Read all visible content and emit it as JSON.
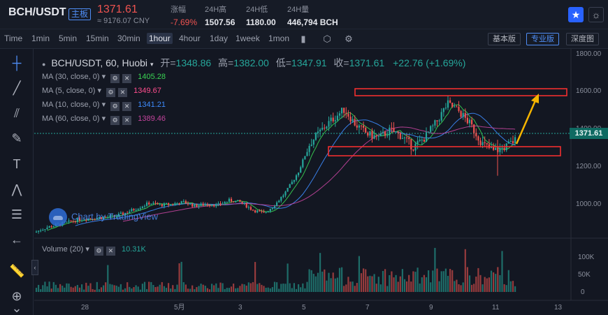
{
  "ticker": {
    "pair": "BCH/USDT",
    "main_badge": "主板",
    "price": "1371.61",
    "cny": "≈ 9176.07 CNY",
    "change_label": "涨幅",
    "change_value": "-7.69%",
    "high_label": "24H高",
    "high_value": "1507.56",
    "low_label": "24H低",
    "low_value": "1180.00",
    "volume_label": "24H量",
    "volume_value": "446,794 BCH"
  },
  "toolbar": {
    "timeframes": [
      "Time",
      "1min",
      "5min",
      "15min",
      "30min",
      "1hour",
      "4hour",
      "1day",
      "1week",
      "1mon"
    ],
    "active_timeframe": "1hour",
    "modes": [
      "基本版",
      "专业版",
      "深度图"
    ],
    "active_mode": "专业版"
  },
  "legend": {
    "symbol": "BCH/USDT, 60, Huobi",
    "open_label": "开=",
    "open": "1348.86",
    "high_label": "高=",
    "high": "1382.00",
    "low_label": "低=",
    "low": "1347.91",
    "close_label": "收=",
    "close": "1371.61",
    "change": "+22.76 (+1.69%)",
    "ma": [
      {
        "label": "MA (30, close, 0)",
        "value": "1405.28",
        "color": "#39d353"
      },
      {
        "label": "MA (5, close, 0)",
        "value": "1349.67",
        "color": "#ff4d8d"
      },
      {
        "label": "MA (10, close, 0)",
        "value": "1341.21",
        "color": "#3d8bfd"
      },
      {
        "label": "MA (60, close, 0)",
        "value": "1389.46",
        "color": "#c2449c"
      }
    ],
    "volume_label": "Volume (20)",
    "volume_value": "10.31K",
    "watermark": "Chart by TradingView"
  },
  "colors": {
    "up": "#26a69a",
    "down": "#ef5350",
    "ma30": "#39d353",
    "ma60": "#c2449c",
    "annotation": "#ff3030",
    "arrow": "#f5b400"
  },
  "chart_data": {
    "type": "candlestick",
    "price_axis": [
      "1800.00",
      "1600.00",
      "1400.00",
      "1200.00",
      "1000.00"
    ],
    "price_range": [
      850,
      1850
    ],
    "last_price_label": "1371.61",
    "volume_axis": [
      "100K",
      "50K",
      "0"
    ],
    "x_ticks": [
      "28",
      "5月",
      "3",
      "5",
      "7",
      "9",
      "11",
      "13"
    ],
    "annotations": {
      "resistance_zone": [
        1585,
        1620
      ],
      "support_zone": [
        1250,
        1300
      ]
    },
    "price_path": [
      [
        0,
        880
      ],
      [
        20,
        905
      ],
      [
        40,
        920
      ],
      [
        60,
        935
      ],
      [
        80,
        950
      ],
      [
        100,
        955
      ],
      [
        120,
        960
      ],
      [
        140,
        965
      ],
      [
        160,
        985
      ],
      [
        180,
        1010
      ],
      [
        200,
        1035
      ],
      [
        220,
        1025
      ],
      [
        240,
        1030
      ],
      [
        260,
        1040
      ],
      [
        280,
        1020
      ],
      [
        300,
        1030
      ],
      [
        320,
        1025
      ],
      [
        340,
        1050
      ],
      [
        360,
        1040
      ],
      [
        380,
        1000
      ],
      [
        400,
        980
      ],
      [
        420,
        1030
      ],
      [
        440,
        1100
      ],
      [
        460,
        1200
      ],
      [
        480,
        1350
      ],
      [
        500,
        1420
      ],
      [
        520,
        1480
      ],
      [
        540,
        1530
      ],
      [
        560,
        1450
      ],
      [
        580,
        1400
      ],
      [
        600,
        1380
      ],
      [
        620,
        1420
      ],
      [
        640,
        1390
      ],
      [
        660,
        1330
      ],
      [
        680,
        1380
      ],
      [
        700,
        1460
      ],
      [
        720,
        1560
      ],
      [
        740,
        1520
      ],
      [
        760,
        1450
      ],
      [
        780,
        1350
      ],
      [
        800,
        1310
      ],
      [
        820,
        1330
      ],
      [
        840,
        1372
      ]
    ]
  }
}
